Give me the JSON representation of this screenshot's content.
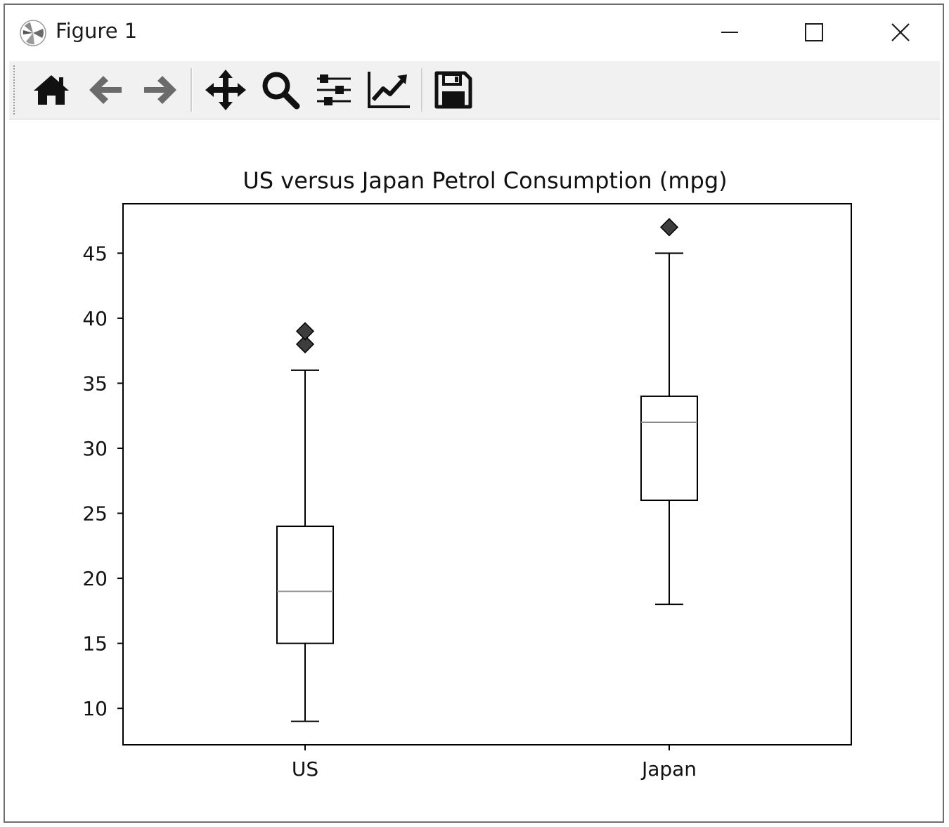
{
  "window": {
    "title": "Figure 1",
    "controls": [
      "minimize-icon",
      "maximize-icon",
      "close-icon"
    ]
  },
  "toolbar": {
    "buttons": [
      {
        "name": "home",
        "icon": "home-icon"
      },
      {
        "name": "back",
        "icon": "back-arrow-icon"
      },
      {
        "name": "forward",
        "icon": "forward-arrow-icon"
      },
      {
        "name": "pan",
        "icon": "pan-move-icon"
      },
      {
        "name": "zoom",
        "icon": "zoom-magnifier-icon"
      },
      {
        "name": "subplots",
        "icon": "subplots-sliders-icon"
      },
      {
        "name": "edit-axes",
        "icon": "edit-axes-icon"
      },
      {
        "name": "save",
        "icon": "save-floppy-icon"
      }
    ]
  },
  "chart_data": {
    "type": "box",
    "title": "US versus Japan Petrol Consumption (mpg)",
    "xlabel": "",
    "ylabel": "",
    "categories": [
      "US",
      "Japan"
    ],
    "boxes": [
      {
        "category": "US",
        "whisker_low": 9,
        "q1": 15,
        "median": 19,
        "q3": 24,
        "whisker_high": 36,
        "outliers": [
          38,
          39
        ]
      },
      {
        "category": "Japan",
        "whisker_low": 18,
        "q1": 26,
        "median": 32,
        "q3": 34,
        "whisker_high": 45,
        "outliers": [
          47
        ]
      }
    ],
    "yticks": [
      "10",
      "15",
      "20",
      "25",
      "30",
      "35",
      "40",
      "45"
    ],
    "ylim": [
      7.2,
      48.8
    ],
    "grid": false,
    "colors": {
      "box": "#000000",
      "median": "#8c8c8c",
      "outlier_fill": "#3d3d3d"
    }
  }
}
